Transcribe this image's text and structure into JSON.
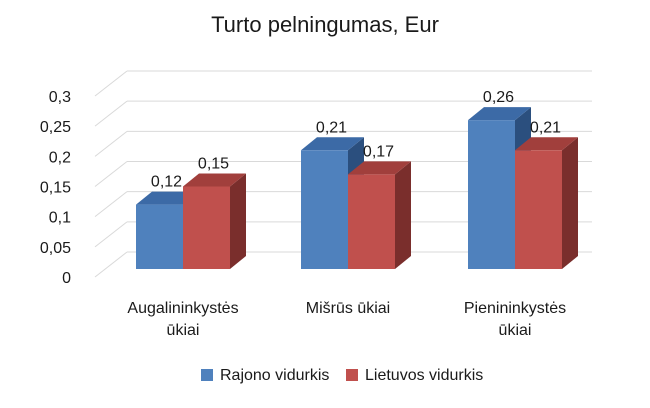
{
  "chart_data": {
    "type": "bar",
    "title": "Turto pelningumas, Eur",
    "categories": [
      [
        "Augalininkystės",
        "ūkiai"
      ],
      [
        "Mišrūs ūkiai"
      ],
      [
        "Pienininkystės",
        "ūkiai"
      ]
    ],
    "series": [
      {
        "name": "Rajono vidurkis",
        "values": [
          0.12,
          0.21,
          0.26
        ],
        "labels": [
          "0,12",
          "0,21",
          "0,26"
        ]
      },
      {
        "name": "Lietuvos vidurkis",
        "values": [
          0.15,
          0.17,
          0.21
        ],
        "labels": [
          "0,15",
          "0,17",
          "0,21"
        ]
      }
    ],
    "yticks": [
      "0",
      "0,05",
      "0,1",
      "0,15",
      "0,2",
      "0,25",
      "0,3"
    ],
    "ylim": [
      0,
      0.3
    ],
    "grid": true,
    "legend_position": "bottom",
    "style": "3d-clustered-column"
  },
  "colors": {
    "series1_front": "#4f81bd",
    "series1_side": "#2b4f7e",
    "series1_top": "#3c6aa6",
    "series2_front": "#c0504d",
    "series2_side": "#7a2e2c",
    "series2_top": "#a13f3c"
  }
}
